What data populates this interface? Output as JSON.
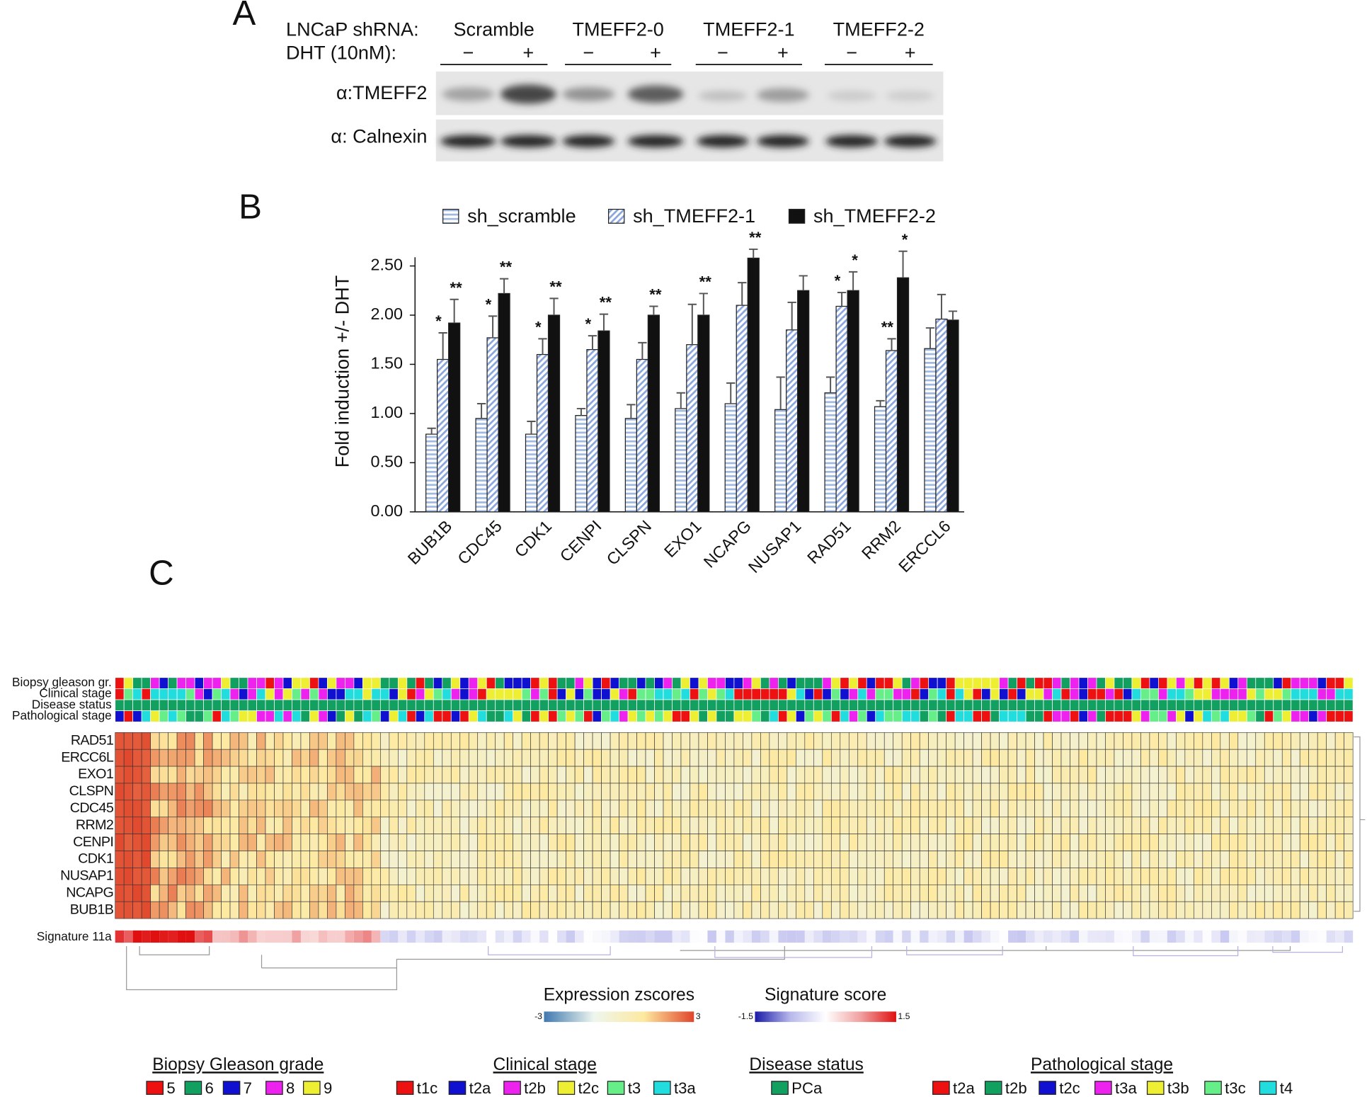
{
  "panel_a": {
    "letter": "A",
    "row_labels": [
      "LNCaP shRNA:",
      "DHT (10nM):"
    ],
    "groups": [
      "Scramble",
      "TMEFF2-0",
      "TMEFF2-1",
      "TMEFF2-2"
    ],
    "signs": [
      "−",
      "+",
      "−",
      "+",
      "−",
      "+",
      "−",
      "+"
    ],
    "blot_labels": [
      "α:TMEFF2",
      "α: Calnexin"
    ]
  },
  "chart_data": {
    "type": "bar",
    "letter": "B",
    "ylabel": "Fold induction +/- DHT",
    "categories": [
      "BUB1B",
      "CDC45",
      "CDK1",
      "CENPI",
      "CLSPN",
      "EXO1",
      "NCAPG",
      "NUSAP1",
      "RAD51",
      "RRM2",
      "ERCCL6"
    ],
    "series": [
      {
        "name": "sh_scramble",
        "color": "#9fb8e0",
        "hatch": "horizontal",
        "values": [
          0.79,
          0.95,
          0.79,
          0.98,
          0.95,
          1.05,
          1.1,
          1.04,
          1.21,
          1.07,
          1.66
        ],
        "errors": [
          0.06,
          0.15,
          0.13,
          0.07,
          0.14,
          0.16,
          0.21,
          0.33,
          0.16,
          0.06,
          0.21
        ],
        "stars": [
          null,
          null,
          null,
          null,
          null,
          null,
          null,
          null,
          null,
          null,
          null
        ]
      },
      {
        "name": "sh_TMEFF2-1",
        "color": "#8aa6dc",
        "hatch": "diagonal",
        "values": [
          1.55,
          1.77,
          1.6,
          1.65,
          1.55,
          1.7,
          2.1,
          1.85,
          2.09,
          1.64,
          1.96
        ],
        "errors": [
          0.27,
          0.22,
          0.16,
          0.14,
          0.17,
          0.41,
          0.23,
          0.28,
          0.14,
          0.12,
          0.25
        ],
        "stars": [
          "*",
          "*",
          "*",
          "*",
          null,
          null,
          null,
          null,
          "*",
          "**",
          null
        ]
      },
      {
        "name": "sh_TMEFF2-2",
        "color": "#111111",
        "hatch": "solid",
        "values": [
          1.92,
          2.22,
          2.0,
          1.84,
          2.0,
          2.0,
          2.58,
          2.25,
          2.25,
          2.38,
          1.95
        ],
        "errors": [
          0.24,
          0.15,
          0.17,
          0.17,
          0.09,
          0.22,
          0.09,
          0.15,
          0.19,
          0.27,
          0.09
        ],
        "stars": [
          "**",
          "**",
          "**",
          "**",
          "**",
          "**",
          "**",
          null,
          "*",
          "*",
          null
        ]
      }
    ],
    "ylim": [
      0,
      2.5
    ],
    "yticks": [
      {
        "value": 0,
        "label": "0.00"
      },
      {
        "value": 0.5,
        "label": "0.50"
      },
      {
        "value": 1,
        "label": "1.00"
      },
      {
        "value": 1.5,
        "label": "1.50"
      },
      {
        "value": 2,
        "label": "2.00"
      },
      {
        "value": 2.5,
        "label": "2.50"
      }
    ],
    "legend": "top"
  },
  "panel_c": {
    "letter": "C",
    "annotation_rows": [
      "Biopsy gleason gr.",
      "Clinical stage",
      "Disease status",
      "Pathological stage"
    ],
    "genes": [
      "RAD51",
      "ERCC6L",
      "EXO1",
      "CLSPN",
      "CDC45",
      "RRM2",
      "CENPI",
      "CDK1",
      "NUSAP1",
      "NCAPG",
      "BUB1B"
    ],
    "signature_label": "Signature 11a",
    "colorbars": [
      {
        "title": "Expression zscores",
        "min_label": "-3",
        "max_label": "3",
        "colors": [
          "#3f78b0",
          "#eef6ee",
          "#fde9a0",
          "#e0452b"
        ]
      },
      {
        "title": "Signature score",
        "min_label": "-1.5",
        "max_label": "1.5",
        "colors": [
          "#1a1aa8",
          "#b8b8ec",
          "#ffffff",
          "#f0a0a0",
          "#e01010"
        ]
      }
    ],
    "legends": [
      {
        "title": "Biopsy Gleason grade",
        "items": [
          {
            "label": "5",
            "color": "#ee1111"
          },
          {
            "label": "6",
            "color": "#12a060"
          },
          {
            "label": "7",
            "color": "#1010d0"
          },
          {
            "label": "8",
            "color": "#ee22ee"
          },
          {
            "label": "9",
            "color": "#eeee33"
          }
        ]
      },
      {
        "title": "Clinical stage",
        "items": [
          {
            "label": "t1c",
            "color": "#ee1111"
          },
          {
            "label": "t2a",
            "color": "#1010d0"
          },
          {
            "label": "t2b",
            "color": "#ee22ee"
          },
          {
            "label": "t2c",
            "color": "#eeee33"
          },
          {
            "label": "t3",
            "color": "#66ee88"
          },
          {
            "label": "t3a",
            "color": "#22dddd"
          }
        ]
      },
      {
        "title": "Disease status",
        "items": [
          {
            "label": "PCa",
            "color": "#12a060"
          }
        ]
      },
      {
        "title": "Pathological stage",
        "items": [
          {
            "label": "t2a",
            "color": "#ee1111"
          },
          {
            "label": "t2b",
            "color": "#12a060"
          },
          {
            "label": "t2c",
            "color": "#1010d0"
          },
          {
            "label": "t3a",
            "color": "#ee22ee"
          },
          {
            "label": "t3b",
            "color": "#eeee33"
          },
          {
            "label": "t3c",
            "color": "#66ee88"
          },
          {
            "label": "t4",
            "color": "#22dddd"
          }
        ]
      }
    ]
  }
}
